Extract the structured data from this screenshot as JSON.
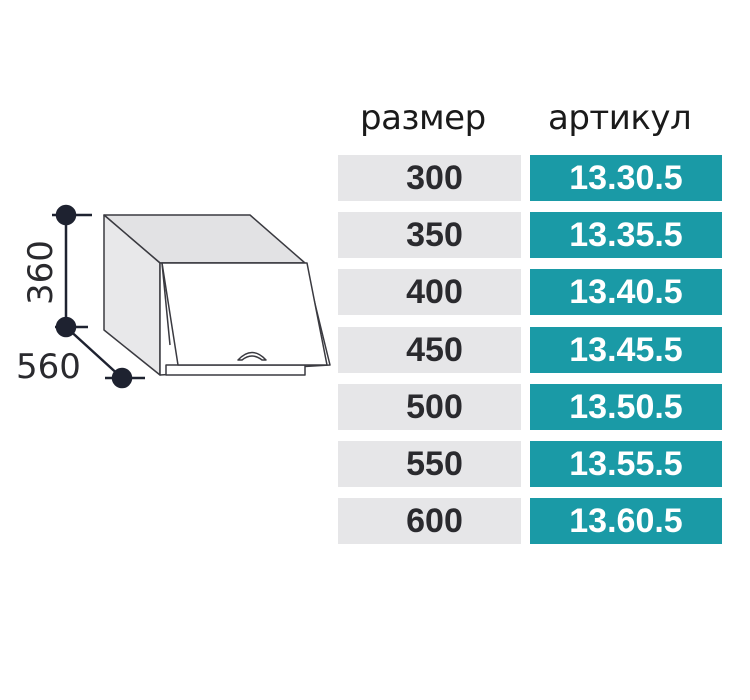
{
  "drawing": {
    "height_label": "360",
    "depth_label": "560"
  },
  "table": {
    "headers": {
      "size": "размер",
      "article": "артикул"
    },
    "accent_color": "#1a9aa6",
    "rows": [
      {
        "size": "300",
        "article": "13.30.5"
      },
      {
        "size": "350",
        "article": "13.35.5"
      },
      {
        "size": "400",
        "article": "13.40.5"
      },
      {
        "size": "450",
        "article": "13.45.5"
      },
      {
        "size": "500",
        "article": "13.50.5"
      },
      {
        "size": "550",
        "article": "13.55.5"
      },
      {
        "size": "600",
        "article": "13.60.5"
      }
    ]
  }
}
